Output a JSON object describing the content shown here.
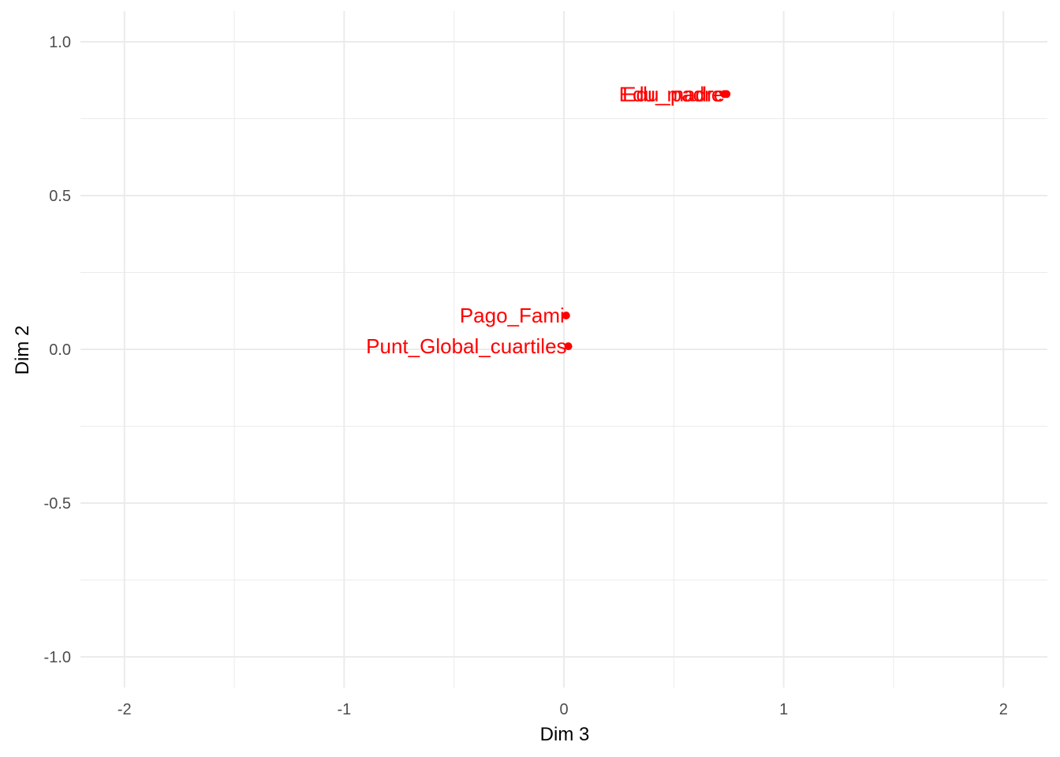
{
  "chart_data": {
    "type": "scatter",
    "xlabel": "Dim 3",
    "ylabel": "Dim 2",
    "xlim": [
      -2.2,
      2.2
    ],
    "ylim": [
      -1.1,
      1.1
    ],
    "x_ticks": [
      -2,
      -1,
      0,
      1,
      2
    ],
    "x_tick_labels": [
      "-2",
      "-1",
      "0",
      "1",
      "2"
    ],
    "y_ticks": [
      -1.0,
      -0.5,
      0.0,
      0.5,
      1.0
    ],
    "y_tick_labels": [
      "-1.0",
      "-0.5",
      "0.0",
      "0.5",
      "1.0"
    ],
    "grid": true,
    "point_color": "#ff0000",
    "grid_color": "#ebebeb",
    "points": [
      {
        "label": "Edu_madre",
        "x": 0.74,
        "y": 0.83
      },
      {
        "label": "Edu_padre",
        "x": 0.73,
        "y": 0.83
      },
      {
        "label": "Pago_Fami",
        "x": 0.01,
        "y": 0.11
      },
      {
        "label": "Punt_Global_cuartiles",
        "x": 0.02,
        "y": 0.01
      }
    ]
  }
}
